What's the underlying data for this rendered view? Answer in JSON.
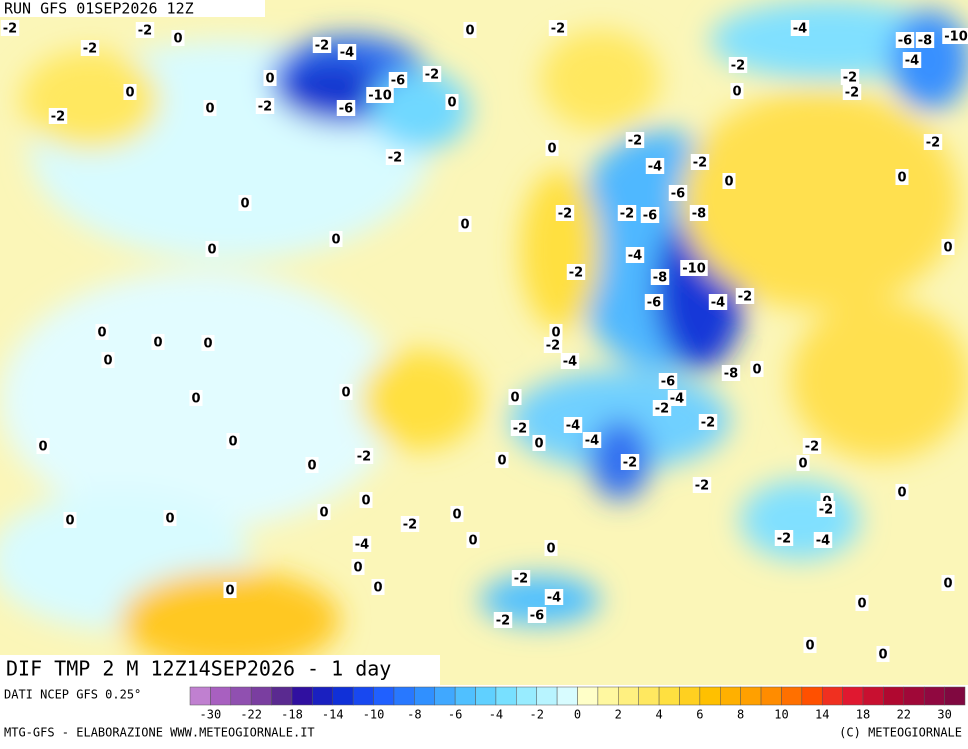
{
  "header": {
    "run": "RUN GFS 01SEP2026 12Z"
  },
  "map": {
    "title": "DIF TMP 2 M 12Z14SEP2026 - 1 day",
    "labels": [
      -2,
      -2,
      -2,
      0,
      0,
      -2,
      0,
      -2,
      -2,
      -4,
      0,
      -6,
      -10,
      -6,
      -2,
      0,
      0,
      -2,
      -2,
      0,
      0,
      0,
      0,
      0,
      -2,
      -2,
      -2,
      -4,
      -2,
      0,
      -6,
      -8,
      -2,
      -6,
      -4,
      -8,
      -10,
      -6,
      -2,
      -4,
      -4,
      -2,
      0,
      -2,
      -2,
      0,
      -2,
      0,
      -6,
      -8,
      -10,
      -4,
      0,
      0,
      0,
      0,
      0,
      0,
      0,
      0,
      0,
      -2,
      0,
      -2,
      -4,
      0,
      -2,
      -4,
      -4,
      0,
      -6,
      -4,
      -2,
      -2,
      0,
      -8,
      -2,
      0,
      0,
      -2,
      -2,
      0,
      -2,
      -2,
      -4,
      0,
      0,
      0,
      -2,
      0,
      0,
      -4,
      0,
      0,
      -2,
      -4,
      -6,
      -2,
      0,
      0,
      0,
      0,
      0,
      0,
      0,
      0
    ]
  },
  "footer": {
    "source": "DATI NCEP GFS 0.25°",
    "credit": "MTG-GFS - ELABORAZIONE WWW.METEOGIORNALE.IT",
    "copyright": "(C) METEOGIORNALE"
  },
  "colorbar": {
    "labels": [
      -30,
      -22,
      -18,
      -14,
      -10,
      -8,
      -6,
      -4,
      -2,
      0,
      2,
      4,
      6,
      8,
      10,
      14,
      18,
      22,
      30
    ],
    "colors": [
      "#c080d0",
      "#a860c0",
      "#9050b0",
      "#7a3ea0",
      "#5a2a90",
      "#3010a0",
      "#1a20c0",
      "#1030d8",
      "#1848f0",
      "#2060ff",
      "#2878ff",
      "#3090ff",
      "#40a8ff",
      "#50c0ff",
      "#60d0ff",
      "#78e0ff",
      "#98ecff",
      "#b8f4ff",
      "#d8fcff",
      "#ffffc8",
      "#fff8a0",
      "#fff080",
      "#ffe860",
      "#ffe040",
      "#ffd020",
      "#ffc000",
      "#ffb000",
      "#ffa000",
      "#ff8c00",
      "#ff7000",
      "#ff5000",
      "#f03020",
      "#e01830",
      "#c81030",
      "#b00830",
      "#a00838",
      "#900840",
      "#800840"
    ]
  }
}
